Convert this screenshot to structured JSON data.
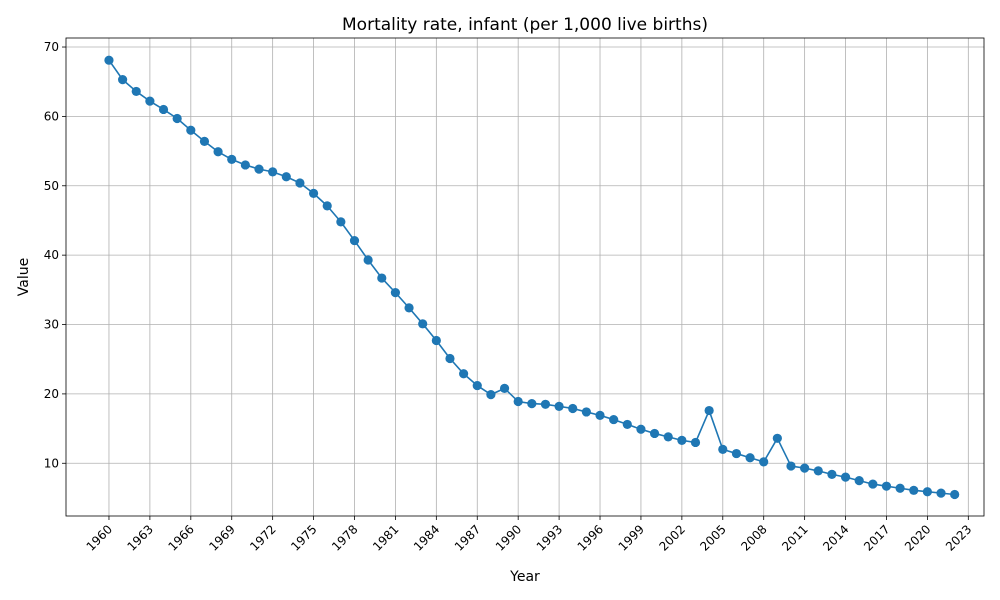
{
  "chart_data": {
    "type": "line",
    "title": "Mortality rate, infant (per 1,000 live births)",
    "xlabel": "Year",
    "ylabel": "Value",
    "xlim": [
      1956.85,
      2024.15
    ],
    "ylim": [
      2.4,
      71.3
    ],
    "xticks": [
      1960,
      1963,
      1966,
      1969,
      1972,
      1975,
      1978,
      1981,
      1984,
      1987,
      1990,
      1993,
      1996,
      1999,
      2002,
      2005,
      2008,
      2011,
      2014,
      2017,
      2020,
      2023
    ],
    "yticks": [
      10,
      20,
      30,
      40,
      50,
      60,
      70
    ],
    "grid": true,
    "line_color": "#1f77b4",
    "marker": "circle",
    "x": [
      1960,
      1961,
      1962,
      1963,
      1964,
      1965,
      1966,
      1967,
      1968,
      1969,
      1970,
      1971,
      1972,
      1973,
      1974,
      1975,
      1976,
      1977,
      1978,
      1979,
      1980,
      1981,
      1982,
      1983,
      1984,
      1985,
      1986,
      1987,
      1988,
      1989,
      1990,
      1991,
      1992,
      1993,
      1994,
      1995,
      1996,
      1997,
      1998,
      1999,
      2000,
      2001,
      2002,
      2003,
      2004,
      2005,
      2006,
      2007,
      2008,
      2009,
      2010,
      2011,
      2012,
      2013,
      2014,
      2015,
      2016,
      2017,
      2018,
      2019,
      2020,
      2021,
      2022
    ],
    "values": [
      68.1,
      65.3,
      63.6,
      62.2,
      61.0,
      59.7,
      58.0,
      56.4,
      54.9,
      53.8,
      53.0,
      52.4,
      52.0,
      51.3,
      50.4,
      48.9,
      47.1,
      44.8,
      42.1,
      39.3,
      36.7,
      34.6,
      32.4,
      30.1,
      27.7,
      25.1,
      22.9,
      21.2,
      19.9,
      20.8,
      18.9,
      18.6,
      18.5,
      18.2,
      17.9,
      17.4,
      16.9,
      16.3,
      15.6,
      14.9,
      14.3,
      13.8,
      13.3,
      13.0,
      17.6,
      12.0,
      11.4,
      10.8,
      10.2,
      13.6,
      9.6,
      9.3,
      8.9,
      8.4,
      8.0,
      7.5,
      7.0,
      6.7,
      6.4,
      6.1,
      5.9,
      5.7,
      5.5
    ]
  }
}
